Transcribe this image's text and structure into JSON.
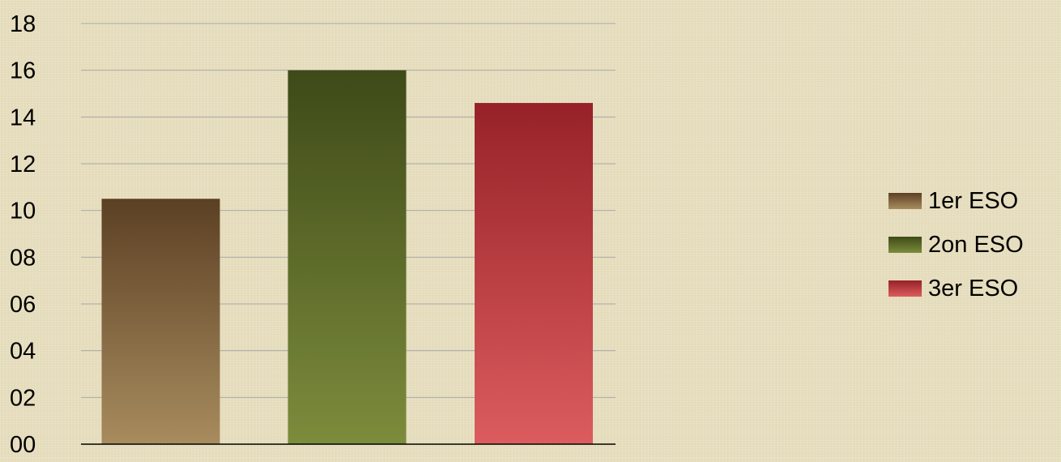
{
  "chart_data": {
    "type": "bar",
    "categories": [
      "1er ESO",
      "2on ESO",
      "3er ESO"
    ],
    "values": [
      10.5,
      16,
      14.6
    ],
    "ylim": [
      0,
      18
    ],
    "yticks": [
      "00",
      "02",
      "04",
      "06",
      "08",
      "10",
      "12",
      "14",
      "16",
      "18"
    ],
    "ytick_values": [
      0,
      2,
      4,
      6,
      8,
      10,
      12,
      14,
      16,
      18
    ],
    "grid": true,
    "legend": {
      "position": "right",
      "entries": [
        "1er ESO",
        "2on ESO",
        "3er ESO"
      ]
    },
    "colors": {
      "1er ESO": {
        "top": "#5c4024",
        "bottom": "#a88c5e"
      },
      "2on ESO": {
        "top": "#3e4a18",
        "bottom": "#7c8c3c"
      },
      "3er ESO": {
        "top": "#962228",
        "bottom": "#dc5c5e"
      }
    },
    "gridline_color": "#a9a9a9",
    "axis_color": "#000000",
    "text_color": "#000000"
  }
}
